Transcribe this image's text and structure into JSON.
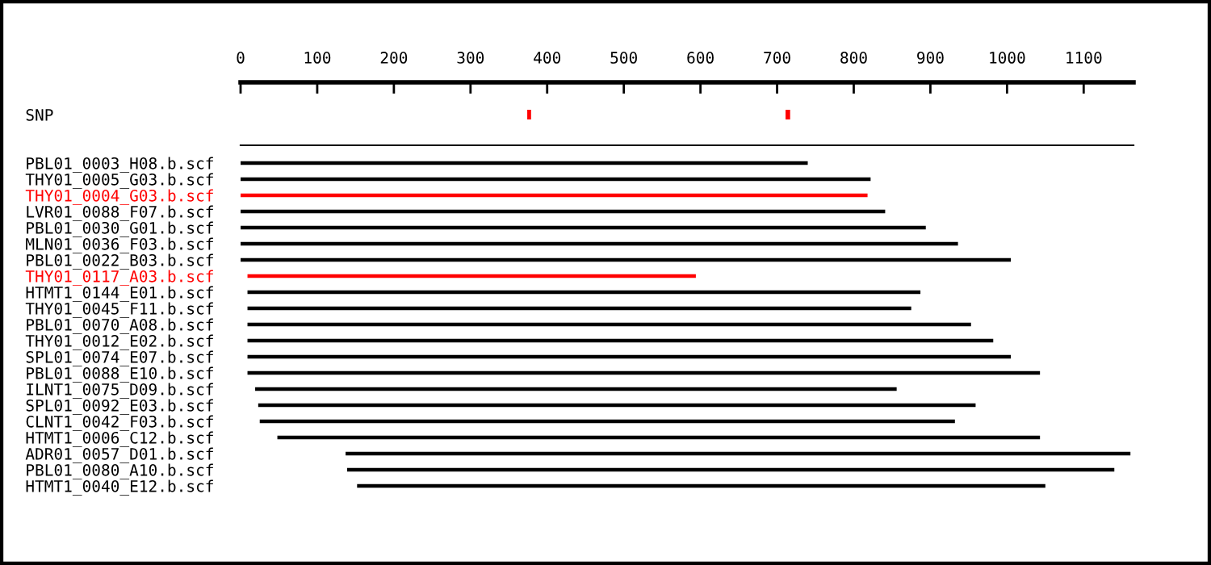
{
  "chart_data": {
    "type": "bar",
    "orientation": "horizontal",
    "xlim": [
      0,
      1165
    ],
    "xticks": [
      0,
      100,
      200,
      300,
      400,
      500,
      600,
      700,
      800,
      900,
      1000,
      1100
    ],
    "categories": [
      "SNP",
      null,
      null,
      "PBL01_0003_H08.b.scf",
      "THY01_0005_G03.b.scf",
      "THY01_0004_G03.b.scf",
      "LVR01_0088_F07.b.scf",
      "PBL01_0030_G01.b.scf",
      "MLN01_0036_F03.b.scf",
      "PBL01_0022_B03.b.scf",
      "THY01_0117_A03.b.scf",
      "HTMT1_0144_E01.b.scf",
      "THY01_0045_F11.b.scf",
      "PBL01_0070_A08.b.scf",
      "THY01_0012_E02.b.scf",
      "SPL01_0074_E07.b.scf",
      "PBL01_0088_E10.b.scf",
      "ILNT1_0075_D09.b.scf",
      "SPL01_0092_E03.b.scf",
      "CLNT1_0042_F03.b.scf",
      "HTMT1_0006_C12.b.scf",
      "ADR01_0057_D01.b.scf",
      "PBL01_0080_A10.b.scf",
      "HTMT1_0040_E12.b.scf"
    ],
    "series": [
      {
        "base": [
          null,
          null,
          null,
          0,
          0,
          0,
          0,
          0,
          0,
          0,
          9,
          9,
          9,
          9,
          9,
          9,
          9,
          19,
          23,
          25,
          48,
          137,
          139,
          152
        ],
        "values": [
          null,
          null,
          null,
          740,
          822,
          818,
          841,
          894,
          936,
          1005,
          585,
          878,
          866,
          944,
          973,
          996,
          1034,
          837,
          936,
          907,
          995,
          1024,
          1001,
          898
        ],
        "colors": [
          null,
          null,
          null,
          "#000000",
          "#000000",
          "#ff0000",
          "#000000",
          "#000000",
          "#000000",
          "#000000",
          "#ff0000",
          "#000000",
          "#000000",
          "#000000",
          "#000000",
          "#000000",
          "#000000",
          "#000000",
          "#000000",
          "#000000",
          "#000000",
          "#000000",
          "#000000",
          "#000000"
        ]
      },
      {
        "color": "#ff0000",
        "base": [
          374,
          null,
          null,
          null,
          null,
          null,
          null,
          null,
          null,
          null,
          null,
          null,
          null,
          null,
          null,
          null,
          null,
          null,
          null,
          null,
          null,
          null,
          null,
          null
        ],
        "values": [
          5,
          null,
          null,
          null,
          null,
          null,
          null,
          null,
          null,
          null,
          null,
          null,
          null,
          null,
          null,
          null,
          null,
          null,
          null,
          null,
          null,
          null,
          null,
          null
        ]
      },
      {
        "color": "#ff0000",
        "base": [
          711,
          null,
          null,
          null,
          null,
          null,
          null,
          null,
          null,
          null,
          null,
          null,
          null,
          null,
          null,
          null,
          null,
          null,
          null,
          null,
          null,
          null,
          null,
          null
        ],
        "values": [
          6,
          null,
          null,
          null,
          null,
          null,
          null,
          null,
          null,
          null,
          null,
          null,
          null,
          null,
          null,
          null,
          null,
          null,
          null,
          null,
          null,
          null,
          null,
          null
        ]
      }
    ]
  }
}
